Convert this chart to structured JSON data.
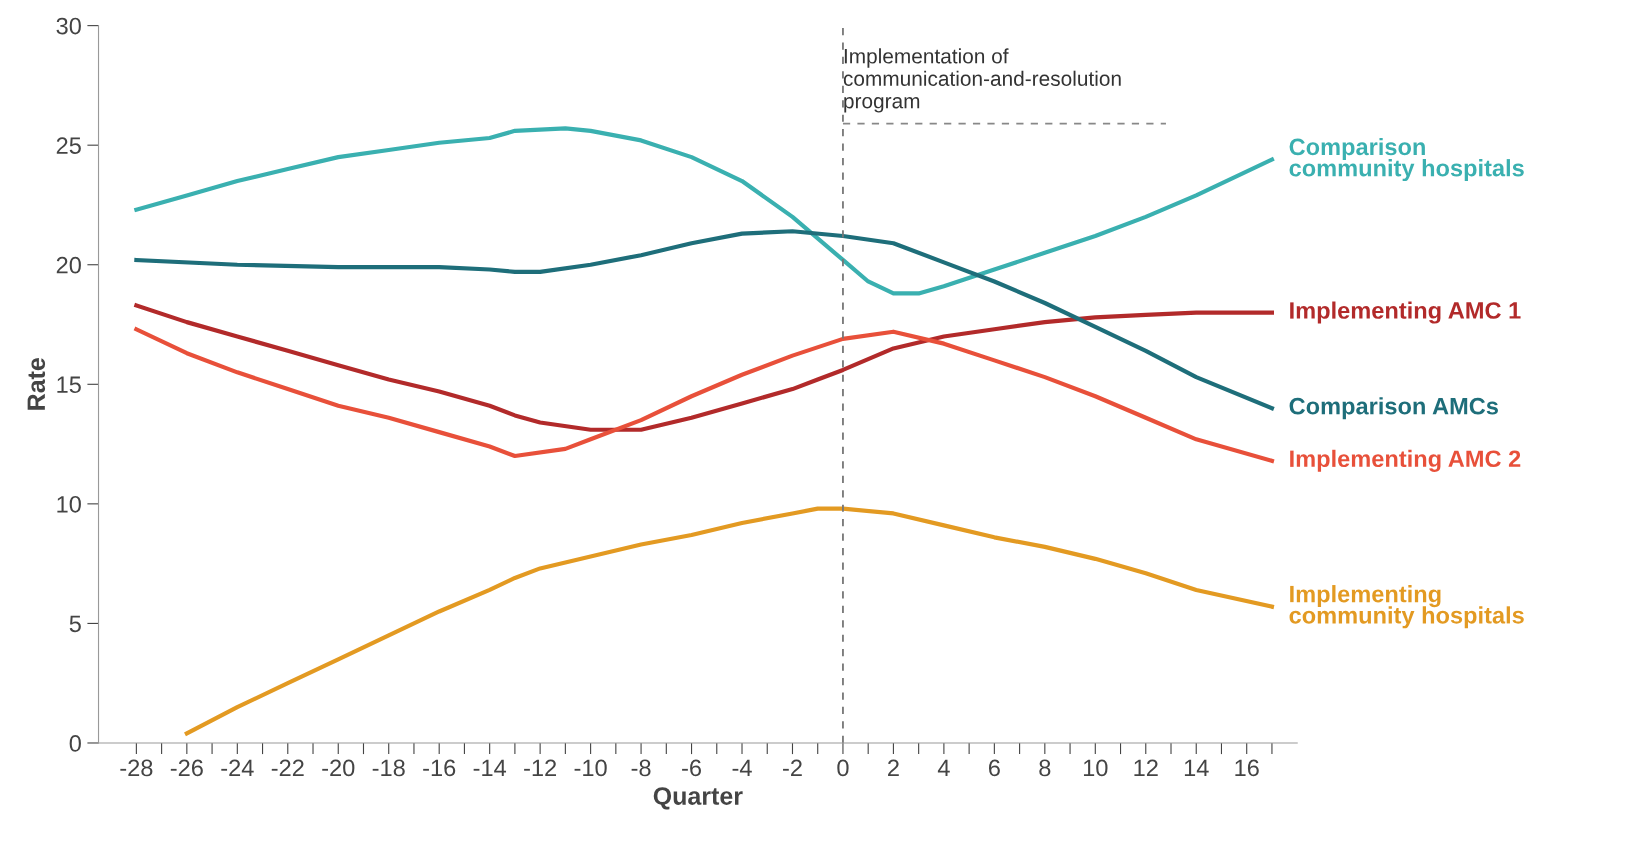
{
  "chart_data": {
    "type": "line",
    "xlabel": "Quarter",
    "ylabel": "Rate",
    "xlim": [
      -29.5,
      18
    ],
    "ylim": [
      0,
      30
    ],
    "xticks": [
      -28,
      {
        "value": -27,
        "label": null
      },
      -26,
      {
        "value": -25,
        "label": null
      },
      -24,
      {
        "value": -23,
        "label": null
      },
      -22,
      {
        "value": -21,
        "label": null
      },
      -20,
      {
        "value": -19,
        "label": null
      },
      -18,
      {
        "value": -17,
        "label": null
      },
      -16,
      {
        "value": -15,
        "label": null
      },
      -14,
      {
        "value": -13,
        "label": null
      },
      -12,
      {
        "value": -11,
        "label": null
      },
      -10,
      {
        "value": -9,
        "label": null
      },
      -8,
      {
        "value": -7,
        "label": null
      },
      -6,
      {
        "value": -5,
        "label": null
      },
      -4,
      {
        "value": -3,
        "label": null
      },
      -2,
      {
        "value": -1,
        "label": null
      },
      0,
      {
        "value": 1,
        "label": null
      },
      2,
      {
        "value": 3,
        "label": null
      },
      4,
      {
        "value": 5,
        "label": null
      },
      6,
      {
        "value": 7,
        "label": null
      },
      8,
      {
        "value": 9,
        "label": null
      },
      10,
      {
        "value": 11,
        "label": null
      },
      12,
      {
        "value": 13,
        "label": null
      },
      14,
      {
        "value": 15,
        "label": null
      },
      16,
      {
        "value": 17,
        "label": null
      }
    ],
    "yticks": [
      0,
      5,
      10,
      15,
      20,
      25,
      30
    ],
    "grid": false,
    "legend": false,
    "marker": "none",
    "line_style": "solid",
    "series": [
      {
        "name": "Comparison\ncommunity hospitals",
        "color": "#3ab0b0",
        "x": [
          -28,
          -26,
          -24,
          -22,
          -20,
          -18,
          -16,
          -14,
          -13,
          -11,
          -10,
          -8,
          -6,
          -4,
          -2,
          0,
          1,
          2,
          3,
          4,
          6,
          8,
          10,
          12,
          14,
          17
        ],
        "values": [
          22.3,
          22.9,
          23.5,
          24.0,
          24.5,
          24.8,
          25.1,
          25.3,
          25.6,
          25.7,
          25.6,
          25.2,
          24.5,
          23.5,
          22.0,
          20.2,
          19.3,
          18.8,
          18.8,
          19.1,
          19.8,
          20.5,
          21.2,
          22.0,
          22.9,
          24.4
        ]
      },
      {
        "name": "Implementing AMC 1",
        "color": "#b22a2a",
        "x": [
          -28,
          -26,
          -24,
          -22,
          -20,
          -18,
          -16,
          -14,
          -13,
          -12,
          -10,
          -8,
          -6,
          -4,
          -2,
          -1,
          0,
          2,
          4,
          6,
          8,
          10,
          12,
          14,
          17
        ],
        "values": [
          18.3,
          17.6,
          17.0,
          16.4,
          15.8,
          15.2,
          14.7,
          14.1,
          13.7,
          13.4,
          13.1,
          13.1,
          13.6,
          14.2,
          14.8,
          15.2,
          15.6,
          16.5,
          17.0,
          17.3,
          17.6,
          17.8,
          17.9,
          18.0,
          18.0
        ]
      },
      {
        "name": "Comparison AMCs",
        "color": "#1e6e7a",
        "x": [
          -28,
          -24,
          -20,
          -16,
          -14,
          -13,
          -12,
          -10,
          -8,
          -6,
          -4,
          -2,
          0,
          2,
          4,
          6,
          8,
          10,
          12,
          14,
          17
        ],
        "values": [
          20.2,
          20.0,
          19.9,
          19.9,
          19.8,
          19.7,
          19.7,
          20.0,
          20.4,
          20.9,
          21.3,
          21.4,
          21.2,
          20.9,
          20.1,
          19.3,
          18.4,
          17.4,
          16.4,
          15.3,
          14.0
        ]
      },
      {
        "name": "Implementing AMC 2",
        "color": "#e8503a",
        "x": [
          -28,
          -26,
          -24,
          -22,
          -20,
          -18,
          -16,
          -14,
          -13,
          -11,
          -10,
          -8,
          -6,
          -4,
          -2,
          0,
          2,
          4,
          6,
          8,
          10,
          12,
          14,
          17
        ],
        "values": [
          17.3,
          16.3,
          15.5,
          14.8,
          14.1,
          13.6,
          13.0,
          12.4,
          12.0,
          12.3,
          12.7,
          13.5,
          14.5,
          15.4,
          16.2,
          16.9,
          17.2,
          16.7,
          16.0,
          15.3,
          14.5,
          13.6,
          12.7,
          11.8
        ]
      },
      {
        "name": "Implementing\ncommunity hospitals",
        "color": "#e39a22",
        "x": [
          -26,
          -24,
          -22,
          -20,
          -18,
          -16,
          -14,
          -13,
          -12,
          -10,
          -8,
          -6,
          -4,
          -2,
          -1,
          0,
          2,
          4,
          6,
          8,
          10,
          12,
          14,
          17
        ],
        "values": [
          0.4,
          1.5,
          2.5,
          3.5,
          4.5,
          5.5,
          6.4,
          6.9,
          7.3,
          7.8,
          8.3,
          8.7,
          9.2,
          9.6,
          9.8,
          9.8,
          9.6,
          9.1,
          8.6,
          8.2,
          7.7,
          7.1,
          6.4,
          5.7
        ]
      },
      {
        "color": "#888888",
        "line_style": "dashed",
        "x": [
          0,
          12.8
        ],
        "values": [
          25.9,
          25.9
        ]
      }
    ],
    "ref_lines": [
      {
        "axis": "x",
        "value": 0,
        "color": "#777777",
        "line_style": "dashed"
      }
    ],
    "annotations": [
      {
        "text": "Implementation of\ncommunication-and-resolution\nprogram",
        "x": 0,
        "y": 25.9
      }
    ]
  }
}
